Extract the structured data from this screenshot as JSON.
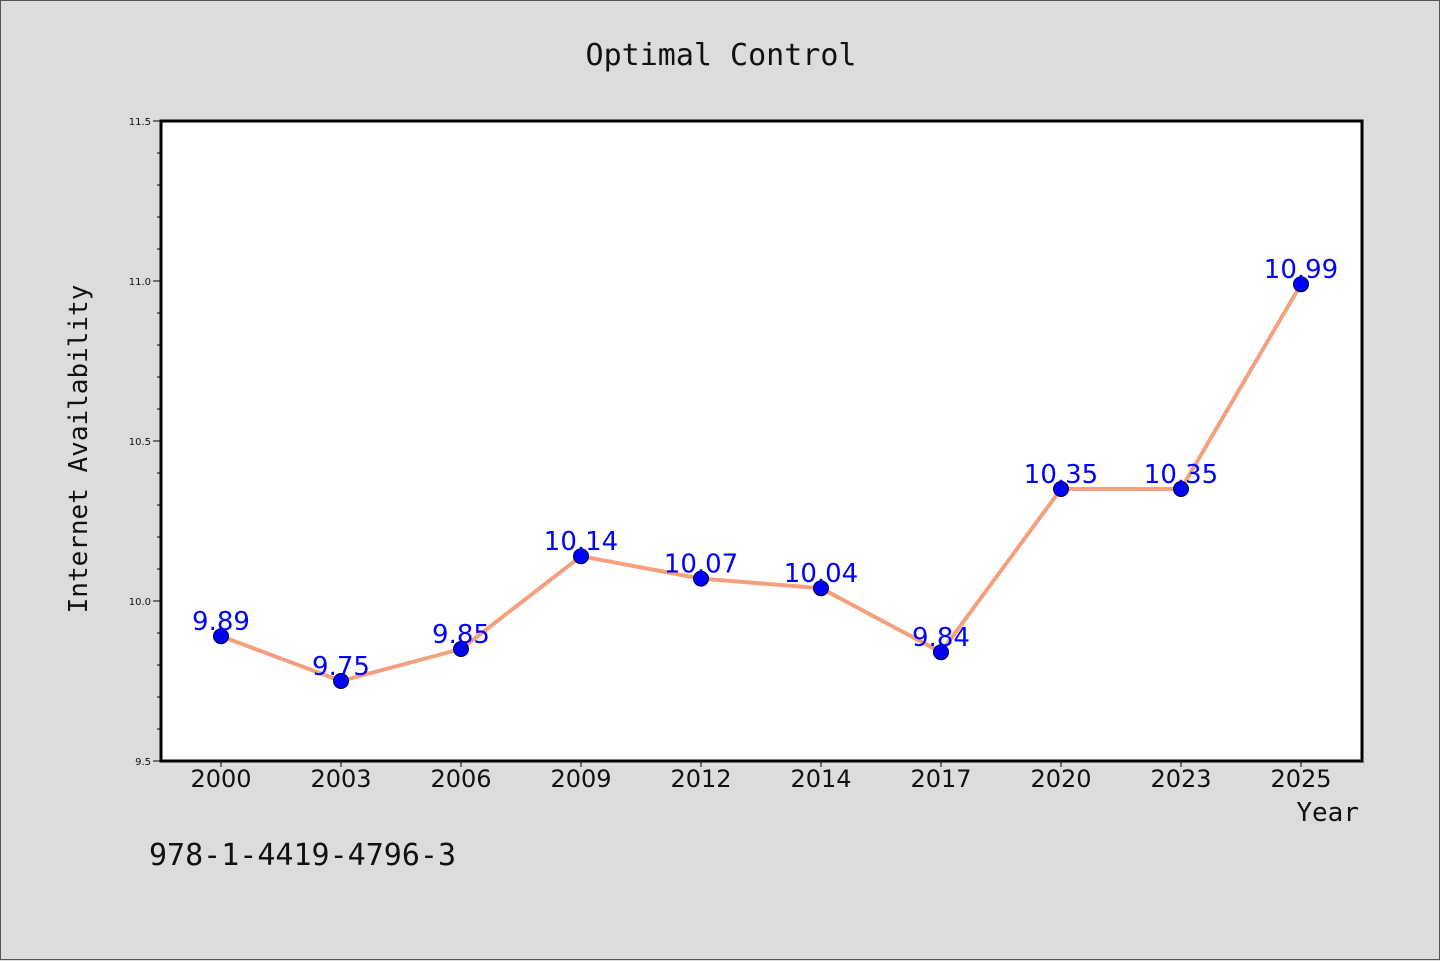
{
  "chart_data": {
    "type": "line",
    "title": "Optimal Control",
    "xlabel": "Year",
    "ylabel": "Internet Availability",
    "categories": [
      "2000",
      "2003",
      "2006",
      "2009",
      "2012",
      "2014",
      "2017",
      "2020",
      "2023",
      "2025"
    ],
    "series": [
      {
        "values": [
          9.89,
          9.75,
          9.85,
          10.14,
          10.07,
          10.04,
          9.84,
          10.35,
          10.35,
          10.99
        ],
        "line_color": "#f4a07e",
        "marker_color": "#0000ff"
      }
    ],
    "data_labels": [
      "9.89",
      "9.75",
      "9.85",
      "10.14",
      "10.07",
      "10.04",
      "9.84",
      "10.35",
      "10.35",
      "10.99"
    ],
    "ylim": [
      9.5,
      11.5
    ],
    "yticks": [
      9.5,
      10.0,
      10.5,
      11.0,
      11.5
    ],
    "ytick_labels": [
      "9.5",
      "10.0",
      "10.5",
      "11.0",
      "11.5"
    ],
    "grid": false,
    "legend": "none"
  },
  "footer": {
    "isbn": "978-1-4419-4796-3"
  },
  "colors": {
    "background": "#dcdcdc",
    "plot_background": "#ffffff",
    "data_label": "#0000ff"
  }
}
